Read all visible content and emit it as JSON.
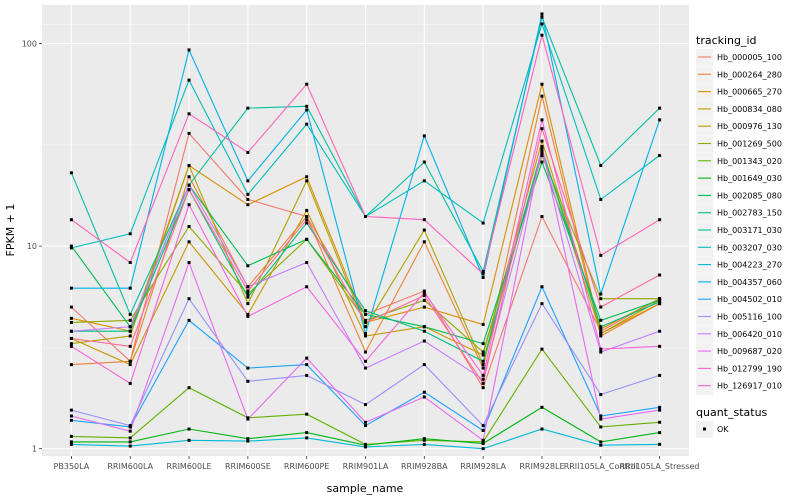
{
  "chart_data": {
    "type": "line",
    "ylabel": "FPKM + 1",
    "xlabel": "sample_name",
    "y_scale": "log10",
    "ylim": [
      0.92,
      155
    ],
    "y_ticks": [
      {
        "value": 1,
        "label": "1"
      },
      {
        "value": 10,
        "label": "10"
      },
      {
        "value": 100,
        "label": "100"
      }
    ],
    "categories": [
      "PB350LA",
      "RRIM600LA",
      "RRIM600LE",
      "RRIM600SE",
      "RRIM600PE",
      "RRIM901LA",
      "RRIM928BA",
      "RRIM928LA",
      "RRIM928LE",
      "RRII105LA_Control",
      "RRII105LA_Stressed"
    ],
    "background": "#ebebeb",
    "grid": true,
    "legend_position": "right",
    "legend": {
      "title": "tracking_id",
      "status_title": "quant_status",
      "status_entries": [
        "OK"
      ]
    },
    "series": [
      {
        "name": "Hb_000005_100",
        "color": "#F8766D",
        "values": [
          5.0,
          2.7,
          36.0,
          17.0,
          14.0,
          4.6,
          6.0,
          2.0,
          14.0,
          3.8,
          5.5
        ]
      },
      {
        "name": "Hb_000264_280",
        "color": "#EC8239",
        "values": [
          2.6,
          2.7,
          22.0,
          6.3,
          14.0,
          3.0,
          10.5,
          2.5,
          55.0,
          3.6,
          5.2
        ]
      },
      {
        "name": "Hb_000665_270",
        "color": "#DB8E00",
        "values": [
          4.4,
          3.8,
          25.0,
          16.0,
          22.0,
          4.2,
          5.0,
          4.1,
          63.0,
          3.7,
          5.2
        ]
      },
      {
        "name": "Hb_000834_080",
        "color": "#C79800",
        "values": [
          3.5,
          2.6,
          10.5,
          4.6,
          15.0,
          3.6,
          4.0,
          2.9,
          33.0,
          3.9,
          5.5
        ]
      },
      {
        "name": "Hb_000976_130",
        "color": "#AEA200",
        "values": [
          3.3,
          3.6,
          25.0,
          5.2,
          21.0,
          4.0,
          12.0,
          2.6,
          30.0,
          3.7,
          5.4
        ]
      },
      {
        "name": "Hb_001269_500",
        "color": "#8FAA00",
        "values": [
          4.2,
          4.3,
          12.5,
          5.8,
          10.8,
          4.3,
          5.4,
          3.0,
          28.0,
          5.5,
          5.5
        ]
      },
      {
        "name": "Hb_001343_020",
        "color": "#64B200",
        "values": [
          1.15,
          1.13,
          2.0,
          1.42,
          1.48,
          1.05,
          1.1,
          1.08,
          3.1,
          1.28,
          1.35
        ]
      },
      {
        "name": "Hb_001649_030",
        "color": "#00B712",
        "values": [
          1.08,
          1.08,
          1.25,
          1.12,
          1.2,
          1.04,
          1.12,
          1.06,
          1.6,
          1.08,
          1.2
        ]
      },
      {
        "name": "Hb_002085_080",
        "color": "#00BC56",
        "values": [
          10.0,
          4.0,
          20.0,
          8.0,
          10.8,
          4.6,
          4.0,
          3.3,
          26.0,
          4.3,
          5.4
        ]
      },
      {
        "name": "Hb_002783_150",
        "color": "#00BE7D",
        "values": [
          3.8,
          3.8,
          19.0,
          5.6,
          13.0,
          4.8,
          3.8,
          2.7,
          30.0,
          4.0,
          5.3
        ]
      },
      {
        "name": "Hb_003171_030",
        "color": "#00C19F",
        "values": [
          23.0,
          4.6,
          20.0,
          48.0,
          49.0,
          14.0,
          26.0,
          7.5,
          135.0,
          25.0,
          48.0
        ]
      },
      {
        "name": "Hb_003207_030",
        "color": "#00BFBC",
        "values": [
          9.8,
          11.5,
          66.0,
          18.0,
          40.0,
          14.0,
          21.0,
          13.0,
          125.0,
          17.0,
          28.0
        ]
      },
      {
        "name": "Hb_004223_270",
        "color": "#00BAD5",
        "values": [
          1.05,
          1.03,
          1.1,
          1.09,
          1.13,
          1.02,
          1.05,
          1.0,
          1.25,
          1.04,
          1.05
        ]
      },
      {
        "name": "Hb_004357_060",
        "color": "#00B1EA",
        "values": [
          6.2,
          6.2,
          93.0,
          21.0,
          47.0,
          3.7,
          35.0,
          7.0,
          140.0,
          5.8,
          42.0
        ]
      },
      {
        "name": "Hb_004502_010",
        "color": "#1FA3FF",
        "values": [
          1.38,
          1.28,
          4.3,
          2.5,
          2.6,
          1.3,
          1.9,
          1.23,
          6.3,
          1.45,
          1.6
        ]
      },
      {
        "name": "Hb_005116_100",
        "color": "#9590FF",
        "values": [
          1.55,
          1.3,
          5.5,
          2.15,
          2.3,
          1.65,
          2.6,
          1.3,
          5.2,
          1.85,
          2.3
        ]
      },
      {
        "name": "Hb_006420_010",
        "color": "#C77CFF",
        "values": [
          3.8,
          4.0,
          20.0,
          6.3,
          8.3,
          2.5,
          3.4,
          2.2,
          29.0,
          3.0,
          3.8
        ]
      },
      {
        "name": "Hb_009687_020",
        "color": "#E76BF3",
        "values": [
          1.45,
          1.22,
          8.3,
          1.4,
          2.8,
          1.35,
          1.8,
          1.1,
          31.0,
          1.4,
          1.55
        ]
      },
      {
        "name": "Hb_012799_190",
        "color": "#FA62DB",
        "values": [
          3.2,
          2.1,
          16.0,
          4.5,
          6.3,
          2.7,
          5.9,
          2.3,
          42.0,
          3.1,
          3.2
        ]
      },
      {
        "name": "Hb_126917_010",
        "color": "#FF62BC",
        "values": [
          13.5,
          8.3,
          45.0,
          29.0,
          63.0,
          14.0,
          13.5,
          7.3,
          110.0,
          9.0,
          13.5
        ]
      },
      {
        "name": "",
        "color": "#FF6C91",
        "values": [
          3.5,
          3.2,
          19.0,
          6.0,
          13.5,
          4.2,
          5.7,
          2.1,
          38.0,
          5.0,
          7.2
        ]
      }
    ]
  }
}
